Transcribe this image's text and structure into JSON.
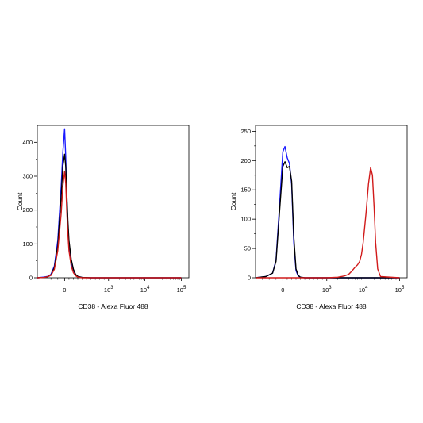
{
  "chart_data": [
    {
      "type": "line",
      "xlabel": "CD38 - Alexa Fluor 488",
      "ylabel": "Count",
      "ylim": [
        0,
        450
      ],
      "y_ticks": [
        0,
        100,
        200,
        300,
        400
      ],
      "x_scale": "biexponential",
      "x_ticks": [
        {
          "value": 0,
          "base": "0",
          "exp": ""
        },
        {
          "value": 1000,
          "base": "10",
          "exp": "3"
        },
        {
          "value": 10000,
          "base": "10",
          "exp": "4"
        },
        {
          "value": 100000,
          "base": "10",
          "exp": "5"
        }
      ],
      "series": [
        {
          "color": "#1a1aff",
          "x": [
            -400,
            -300,
            -250,
            -200,
            -150,
            -100,
            -50,
            -25,
            0,
            25,
            50,
            75,
            100,
            150,
            200,
            250,
            300,
            400,
            600,
            1000,
            100000
          ],
          "y": [
            0,
            2,
            4,
            10,
            35,
            110,
            270,
            370,
            440,
            360,
            240,
            150,
            90,
            40,
            18,
            8,
            4,
            1,
            0,
            0,
            0
          ]
        },
        {
          "color": "#000000",
          "x": [
            -400,
            -300,
            -250,
            -200,
            -150,
            -100,
            -50,
            -25,
            0,
            25,
            50,
            75,
            100,
            150,
            200,
            250,
            300,
            400,
            600,
            1000,
            100000
          ],
          "y": [
            0,
            1,
            3,
            8,
            30,
            95,
            240,
            330,
            365,
            330,
            250,
            170,
            110,
            55,
            25,
            10,
            4,
            1,
            0,
            0,
            0
          ]
        },
        {
          "color": "#d11a1a",
          "x": [
            -400,
            -300,
            -250,
            -200,
            -150,
            -100,
            -50,
            -25,
            0,
            25,
            50,
            75,
            100,
            150,
            200,
            250,
            300,
            400,
            600,
            1000,
            100000
          ],
          "y": [
            0,
            1,
            3,
            7,
            25,
            80,
            190,
            270,
            315,
            280,
            200,
            130,
            80,
            35,
            15,
            6,
            2,
            0,
            0,
            0,
            0
          ]
        }
      ]
    },
    {
      "type": "line",
      "xlabel": "CD38 - Alexa Fluor 488",
      "ylabel": "Count",
      "ylim": [
        0,
        260
      ],
      "y_ticks": [
        0,
        50,
        100,
        150,
        200,
        250
      ],
      "x_scale": "biexponential",
      "x_ticks": [
        {
          "value": 0,
          "base": "0",
          "exp": ""
        },
        {
          "value": 1000,
          "base": "10",
          "exp": "3"
        },
        {
          "value": 10000,
          "base": "10",
          "exp": "4"
        },
        {
          "value": 100000,
          "base": "10",
          "exp": "5"
        }
      ],
      "series": [
        {
          "color": "#1a1aff",
          "x": [
            -400,
            -250,
            -150,
            -100,
            -50,
            0,
            50,
            100,
            150,
            200,
            250,
            300,
            350,
            400,
            500,
            700,
            1000,
            100000
          ],
          "y": [
            0,
            2,
            8,
            30,
            120,
            215,
            224,
            205,
            195,
            160,
            60,
            12,
            3,
            1,
            0,
            0,
            0,
            0
          ]
        },
        {
          "color": "#000000",
          "x": [
            -400,
            -250,
            -150,
            -100,
            -50,
            0,
            50,
            100,
            150,
            200,
            250,
            300,
            350,
            400,
            500,
            700,
            1000,
            100000
          ],
          "y": [
            0,
            2,
            8,
            28,
            110,
            190,
            198,
            188,
            190,
            165,
            70,
            15,
            4,
            1,
            0,
            0,
            0,
            0
          ]
        },
        {
          "color": "#d11a1a",
          "x": [
            -400,
            0,
            1000,
            2000,
            3000,
            4000,
            5000,
            6000,
            7000,
            8000,
            9000,
            10000,
            12000,
            14000,
            16000,
            18000,
            20000,
            22000,
            25000,
            30000,
            100000
          ],
          "y": [
            0,
            0,
            0,
            1,
            3,
            6,
            12,
            18,
            22,
            28,
            40,
            60,
            110,
            160,
            188,
            175,
            120,
            60,
            15,
            2,
            0
          ]
        }
      ]
    }
  ]
}
